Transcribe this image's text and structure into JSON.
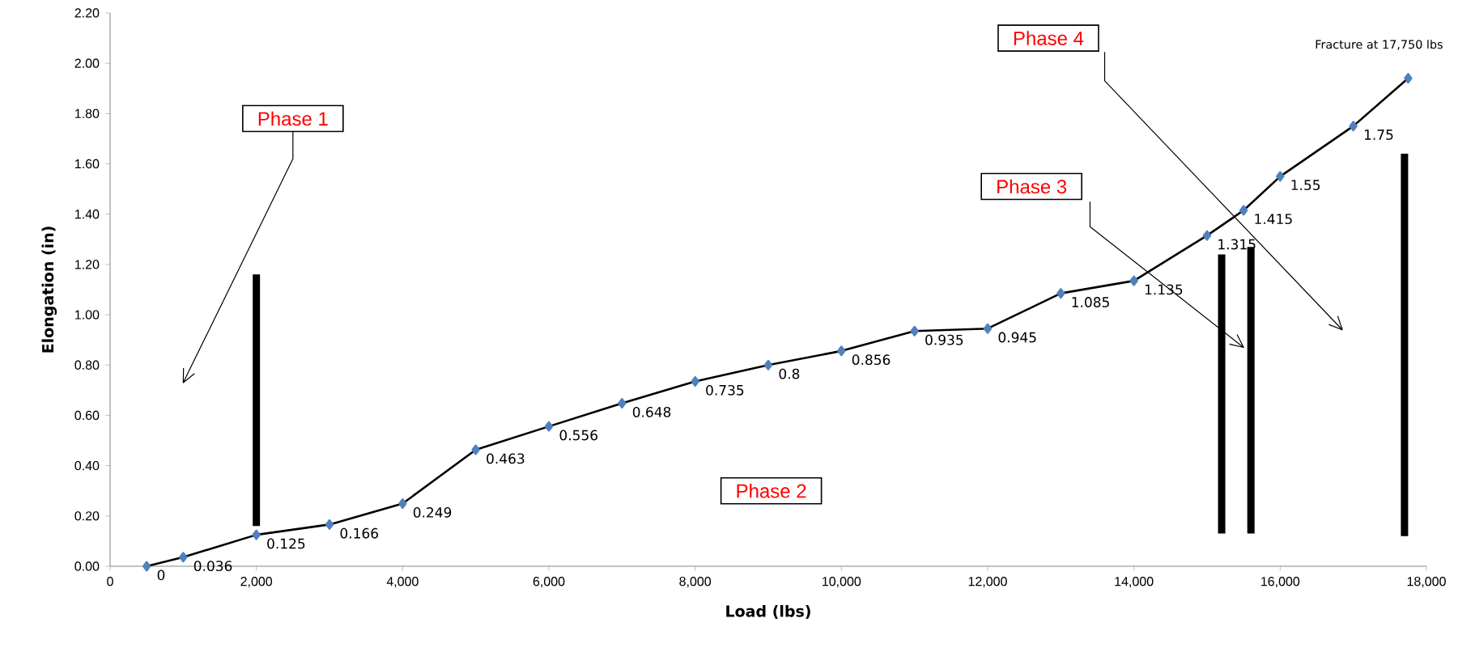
{
  "chart_data": {
    "type": "line",
    "xlabel": "Load (lbs)",
    "ylabel": "Elongation (in)",
    "x": [
      500,
      1000,
      2000,
      3000,
      4000,
      5000,
      6000,
      7000,
      8000,
      9000,
      10000,
      11000,
      12000,
      13000,
      14000,
      15000,
      15500,
      16000,
      17000,
      17750
    ],
    "series": [
      {
        "type": "line",
        "color": "#4f81bd",
        "marker": "diamond",
        "values": [
          0,
          0.036,
          0.125,
          0.166,
          0.249,
          0.463,
          0.556,
          0.648,
          0.735,
          0.8,
          0.856,
          0.935,
          0.945,
          1.085,
          1.135,
          1.315,
          1.415,
          1.55,
          1.75,
          1.94
        ],
        "value_labels": [
          "0",
          "0.036",
          "0.125",
          "0.166",
          "0.249",
          "0.463",
          "0.556",
          "0.648",
          "0.735",
          "0.8",
          "0.856",
          "0.935",
          "0.945",
          "1.085",
          "1.135",
          "1.315",
          "1.415",
          "1.55",
          "1.75",
          null
        ]
      },
      {
        "type": "bar",
        "color": "#000000",
        "x": [
          2000,
          15200,
          15600,
          17700
        ],
        "base": [
          0.16,
          0.13,
          0.13,
          0.12
        ],
        "values": [
          1.0,
          1.11,
          1.14,
          1.52
        ]
      }
    ],
    "annotations": [
      "Phase 1",
      "Phase 2",
      "Phase 3",
      "Phase 4",
      {
        "text": "Fracture at 17,750 lbs",
        "x": 17750,
        "y": 1.94
      }
    ],
    "xlim": [
      0,
      18000
    ],
    "xticks": [
      0,
      {
        "value": 2000,
        "label": "2,000"
      },
      {
        "value": 4000,
        "label": "4,000"
      },
      {
        "value": 6000,
        "label": "6,000"
      },
      {
        "value": 8000,
        "label": "8,000"
      },
      {
        "value": 10000,
        "label": "10,000"
      },
      {
        "value": 12000,
        "label": "12,000"
      },
      {
        "value": 14000,
        "label": "14,000"
      },
      {
        "value": 16000,
        "label": "16,000"
      },
      {
        "value": 18000,
        "label": "18,000"
      }
    ],
    "ylim": [
      0,
      2.2
    ],
    "yticks": [
      {
        "value": 0,
        "label": "0.00"
      },
      {
        "value": 0.2,
        "label": "0.20"
      },
      {
        "value": 0.4,
        "label": "0.40"
      },
      {
        "value": 0.6,
        "label": "0.60"
      },
      {
        "value": 0.8,
        "label": "0.80"
      },
      {
        "value": 1.0,
        "label": "1.00"
      },
      {
        "value": 1.2,
        "label": "1.20"
      },
      {
        "value": 1.4,
        "label": "1.40"
      },
      {
        "value": 1.6,
        "label": "1.60"
      },
      {
        "value": 1.8,
        "label": "1.80"
      },
      {
        "value": 2.0,
        "label": "2.00"
      },
      {
        "value": 2.2,
        "label": "2.20"
      }
    ],
    "grid": false
  }
}
